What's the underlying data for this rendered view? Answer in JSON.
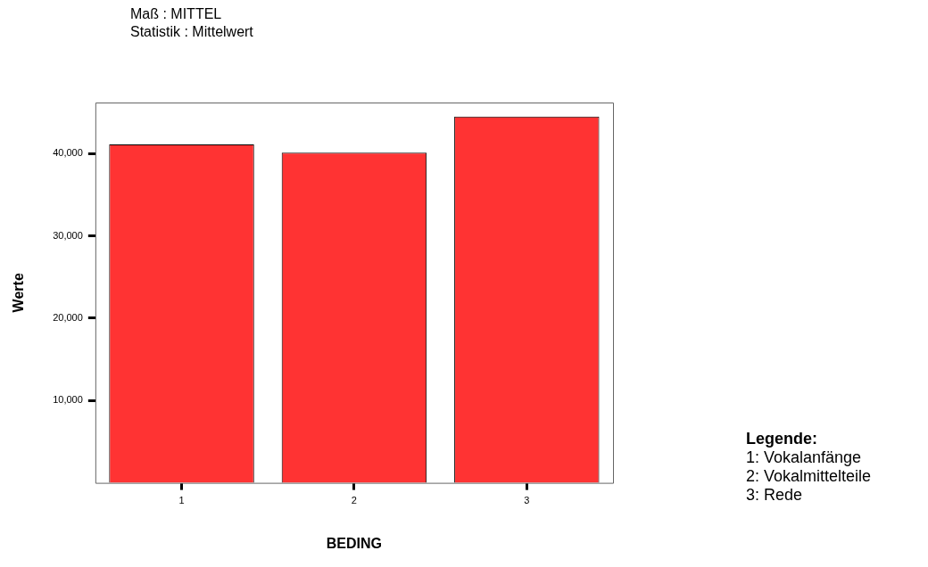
{
  "chart_data": {
    "type": "bar",
    "title": "Maß : MITTEL",
    "subtitle": "Statistik : Mittelwert",
    "xlabel": "BEDING",
    "ylabel": "Werte",
    "categories": [
      "1",
      "2",
      "3"
    ],
    "values": [
      41100,
      40100,
      44500
    ],
    "color": "#ff3333",
    "ylim": [
      0,
      46200
    ],
    "yticks": [
      {
        "value": 10000,
        "label": "10,000"
      },
      {
        "value": 20000,
        "label": "20,000"
      },
      {
        "value": 30000,
        "label": "30,000"
      },
      {
        "value": 40000,
        "label": "40,000"
      }
    ],
    "grid": false,
    "legend": false,
    "annotations": [
      "Legende:",
      "1: Vokalanfänge",
      "2: Vokalmittelteile",
      "3: Rede"
    ]
  }
}
